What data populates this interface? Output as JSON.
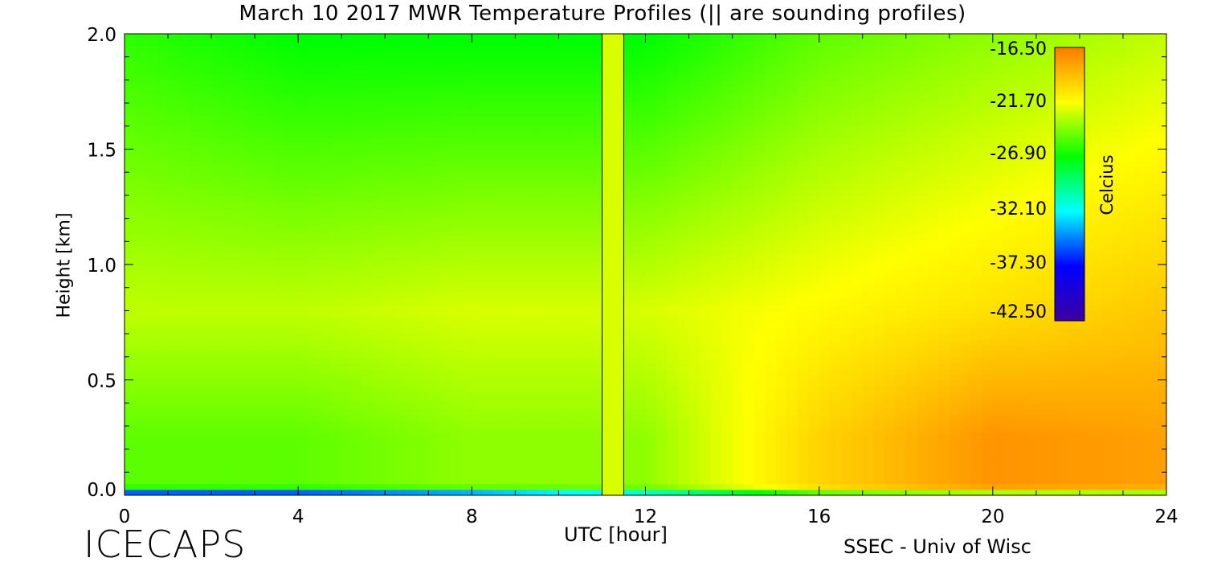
{
  "title": "March 10 2017 MWR Temperature Profiles (|| are sounding profiles)",
  "branding": {
    "left": "ICECAPS",
    "right": "SSEC - Univ of Wisc"
  },
  "chart_data": {
    "type": "heatmap",
    "title": "March 10 2017 MWR Temperature Profiles (|| are sounding profiles)",
    "xlabel": "UTC [hour]",
    "ylabel": "Height [km]",
    "xlim": [
      0,
      24
    ],
    "ylim": [
      0,
      2
    ],
    "xticks": [
      "0",
      "4",
      "8",
      "12",
      "16",
      "20",
      "24"
    ],
    "yticks": [
      "0.0",
      "0.5",
      "1.0",
      "1.5",
      "2.0"
    ],
    "colorbar": {
      "label": "Celcius",
      "ticks": [
        "-16.50",
        "-21.70",
        "-26.90",
        "-32.10",
        "-37.30",
        "-42.50"
      ],
      "range": [
        -42.5,
        -16.5
      ],
      "colormap": [
        "#3c00a0",
        "#0000ff",
        "#00ffff",
        "#00ff00",
        "#ffff00",
        "#ff7a00"
      ]
    },
    "sounding_band_hours": [
      11,
      11.5
    ],
    "sounding_lines_hours": [
      11,
      11.5
    ],
    "temperature_summary": [
      {
        "hour": 0,
        "surface_c": -40,
        "boundary_layer_c": -25,
        "mid_c": -23,
        "top_c": -26
      },
      {
        "hour": 4,
        "surface_c": -40,
        "boundary_layer_c": -25,
        "mid_c": -23,
        "top_c": -27
      },
      {
        "hour": 8,
        "surface_c": -38,
        "boundary_layer_c": -24,
        "mid_c": -22.5,
        "top_c": -27
      },
      {
        "hour": 12,
        "surface_c": -34,
        "boundary_layer_c": -24,
        "mid_c": -22.5,
        "top_c": -27
      },
      {
        "hour": 16,
        "surface_c": -27,
        "boundary_layer_c": -20,
        "mid_c": -21.5,
        "top_c": -25
      },
      {
        "hour": 20,
        "surface_c": -26,
        "boundary_layer_c": -17.5,
        "mid_c": -20.5,
        "top_c": -24
      },
      {
        "hour": 24,
        "surface_c": -26,
        "boundary_layer_c": -18,
        "mid_c": -19.5,
        "top_c": -23
      }
    ]
  }
}
